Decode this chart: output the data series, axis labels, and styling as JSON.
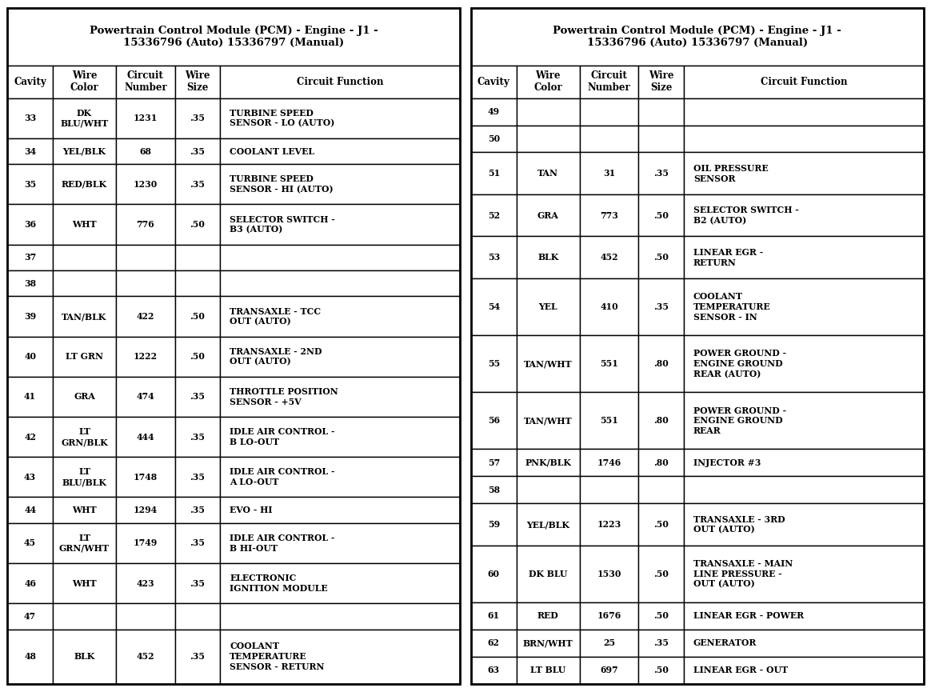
{
  "title": "Powertrain Control Module (PCM) - Engine - J1 -\n15336796 (Auto) 15336797 (Manual)",
  "headers": [
    "Cavity",
    "Wire\nColor",
    "Circuit\nNumber",
    "Wire\nSize",
    "Circuit Function"
  ],
  "left_rows": [
    [
      "33",
      "DK\nBLU/WHT",
      "1231",
      ".35",
      "TURBINE SPEED\nSENSOR - LO (AUTO)"
    ],
    [
      "34",
      "YEL/BLK",
      "68",
      ".35",
      "COOLANT LEVEL"
    ],
    [
      "35",
      "RED/BLK",
      "1230",
      ".35",
      "TURBINE SPEED\nSENSOR - HI (AUTO)"
    ],
    [
      "36",
      "WHT",
      "776",
      ".50",
      "SELECTOR SWITCH -\nB3 (AUTO)"
    ],
    [
      "37",
      "",
      "",
      "",
      ""
    ],
    [
      "38",
      "",
      "",
      "",
      ""
    ],
    [
      "39",
      "TAN/BLK",
      "422",
      ".50",
      "TRANSAXLE - TCC\nOUT (AUTO)"
    ],
    [
      "40",
      "LT GRN",
      "1222",
      ".50",
      "TRANSAXLE - 2ND\nOUT (AUTO)"
    ],
    [
      "41",
      "GRA",
      "474",
      ".35",
      "THROTTLE POSITION\nSENSOR - +5V"
    ],
    [
      "42",
      "LT\nGRN/BLK",
      "444",
      ".35",
      "IDLE AIR CONTROL -\nB LO-OUT"
    ],
    [
      "43",
      "LT\nBLU/BLK",
      "1748",
      ".35",
      "IDLE AIR CONTROL -\nA LO-OUT"
    ],
    [
      "44",
      "WHT",
      "1294",
      ".35",
      "EVO - HI"
    ],
    [
      "45",
      "LT\nGRN/WHT",
      "1749",
      ".35",
      "IDLE AIR CONTROL -\nB HI-OUT"
    ],
    [
      "46",
      "WHT",
      "423",
      ".35",
      "ELECTRONIC\nIGNITION MODULE"
    ],
    [
      "47",
      "",
      "",
      "",
      ""
    ],
    [
      "48",
      "BLK",
      "452",
      ".35",
      "COOLANT\nTEMPERATURE\nSENSOR - RETURN"
    ]
  ],
  "right_rows": [
    [
      "49",
      "",
      "",
      "",
      ""
    ],
    [
      "50",
      "",
      "",
      "",
      ""
    ],
    [
      "51",
      "TAN",
      "31",
      ".35",
      "OIL PRESSURE\nSENSOR"
    ],
    [
      "52",
      "GRA",
      "773",
      ".50",
      "SELECTOR SWITCH -\nB2 (AUTO)"
    ],
    [
      "53",
      "BLK",
      "452",
      ".50",
      "LINEAR EGR -\nRETURN"
    ],
    [
      "54",
      "YEL",
      "410",
      ".35",
      "COOLANT\nTEMPERATURE\nSENSOR - IN"
    ],
    [
      "55",
      "TAN/WHT",
      "551",
      ".80",
      "POWER GROUND -\nENGINE GROUND\nREAR (AUTO)"
    ],
    [
      "56",
      "TAN/WHT",
      "551",
      ".80",
      "POWER GROUND -\nENGINE GROUND\nREAR"
    ],
    [
      "57",
      "PNK/BLK",
      "1746",
      ".80",
      "INJECTOR #3"
    ],
    [
      "58",
      "",
      "",
      "",
      ""
    ],
    [
      "59",
      "YEL/BLK",
      "1223",
      ".50",
      "TRANSAXLE - 3RD\nOUT (AUTO)"
    ],
    [
      "60",
      "DK BLU",
      "1530",
      ".50",
      "TRANSAXLE - MAIN\nLINE PRESSURE -\nOUT (AUTO)"
    ],
    [
      "61",
      "RED",
      "1676",
      ".50",
      "LINEAR EGR - POWER"
    ],
    [
      "62",
      "BRN/WHT",
      "25",
      ".35",
      "GENERATOR"
    ],
    [
      "63",
      "LT BLU",
      "697",
      ".50",
      "LINEAR EGR - OUT"
    ]
  ],
  "bg_color": "#ffffff",
  "border_color": "#000000",
  "text_color": "#000000",
  "col_ratios": [
    0.1,
    0.14,
    0.13,
    0.1,
    0.53
  ],
  "title_fontsize": 9.5,
  "header_fontsize": 8.5,
  "cell_fontsize": 7.8
}
